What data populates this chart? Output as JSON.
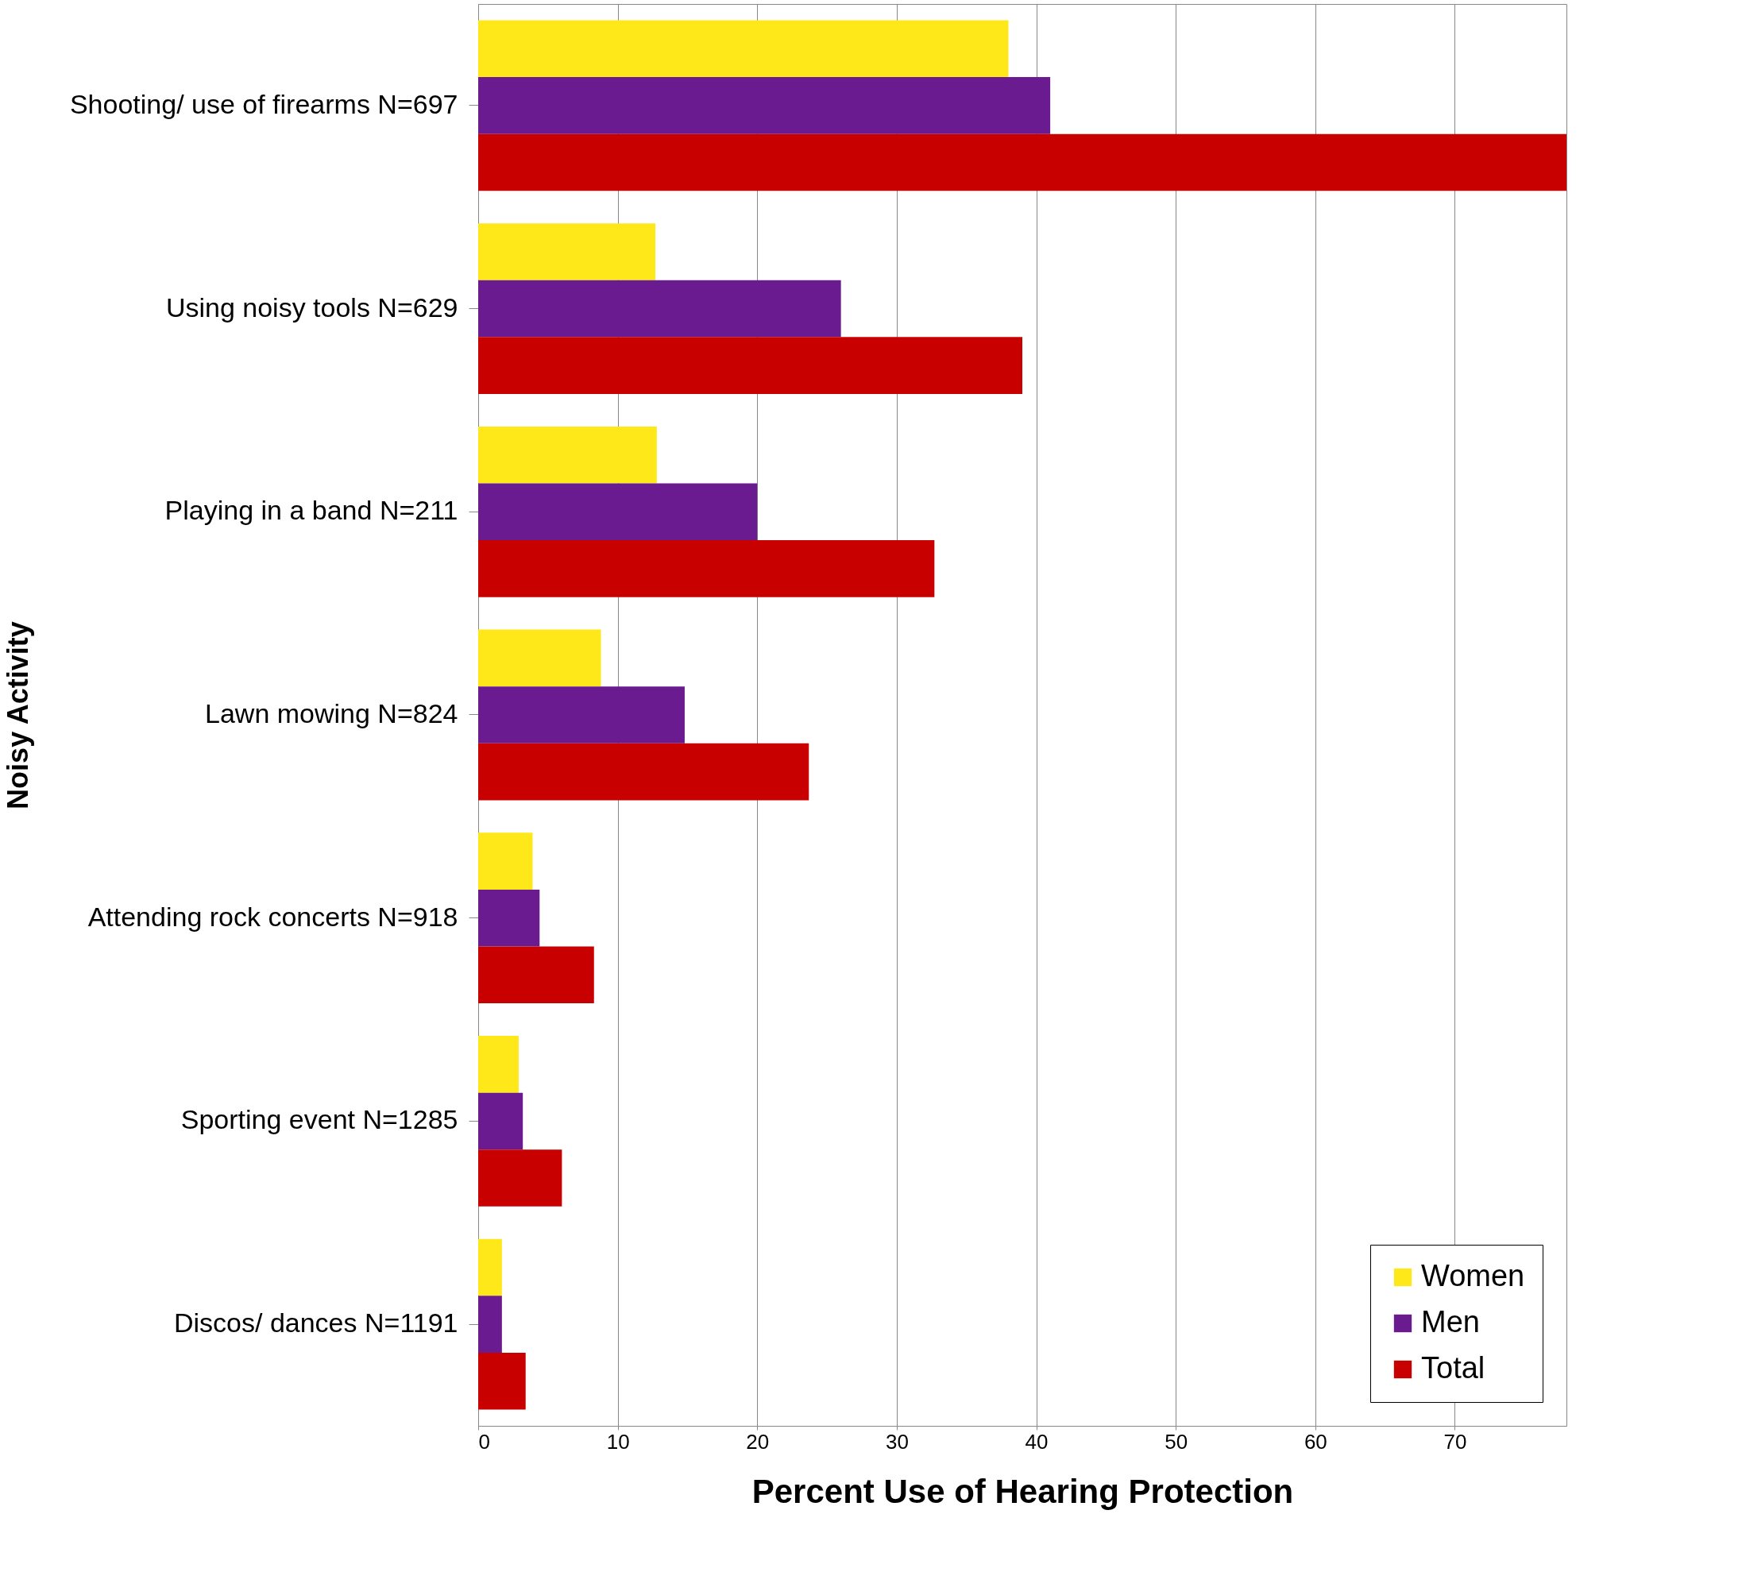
{
  "chart_data": {
    "type": "bar",
    "orientation": "horizontal",
    "xlabel": "Percent Use of Hearing Protection",
    "ylabel": "Noisy Activity",
    "categories": [
      "Shooting/ use of firearms N=697",
      "Using noisy tools N=629",
      "Playing in a band N=211",
      "Lawn mowing N=824",
      "Attending rock concerts N=918",
      "Sporting event N=1285",
      "Discos/ dances N=1191"
    ],
    "series": [
      {
        "name": "Women",
        "color": "#ffe81a",
        "values": [
          38.0,
          12.7,
          12.8,
          8.8,
          3.9,
          2.9,
          1.7
        ]
      },
      {
        "name": "Men",
        "color": "#6a1b8f",
        "values": [
          41.0,
          26.0,
          20.0,
          14.8,
          4.4,
          3.2,
          1.7
        ]
      },
      {
        "name": "Total",
        "color": "#c80000",
        "values": [
          78,
          39.0,
          32.7,
          23.7,
          8.3,
          6.0,
          3.4
        ]
      }
    ],
    "xlim": [
      0,
      78
    ],
    "xticks": [
      0,
      10,
      20,
      30,
      40,
      50,
      60,
      70
    ],
    "grid": "x",
    "legend": "bottom right"
  }
}
